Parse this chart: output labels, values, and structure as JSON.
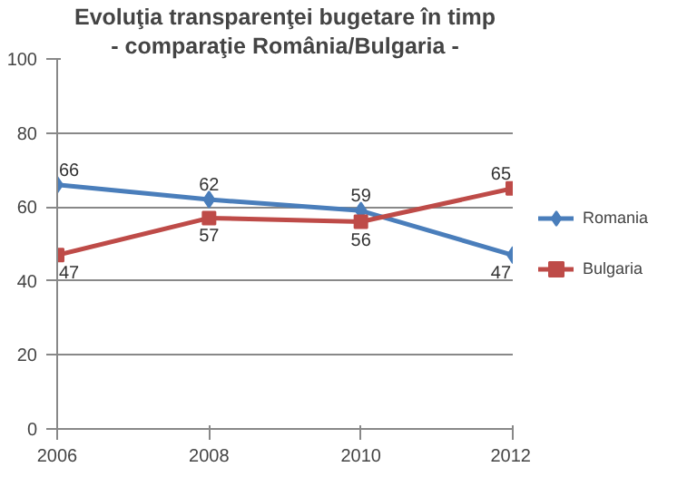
{
  "chart_data": {
    "type": "line",
    "title": "Evoluţia transparenţei bugetare în timp",
    "subtitle": "- comparaţie România/Bulgaria -",
    "x": [
      2006,
      2008,
      2010,
      2012
    ],
    "series": [
      {
        "name": "Romania",
        "color": "#4a7ebb",
        "values": [
          66,
          62,
          59,
          47
        ],
        "marker": "diamond"
      },
      {
        "name": "Bulgaria",
        "color": "#be4b48",
        "values": [
          47,
          57,
          56,
          65
        ],
        "marker": "square"
      }
    ],
    "xlim": [
      2006,
      2012
    ],
    "xticks": [
      2006,
      2008,
      2010,
      2012
    ],
    "ylim": [
      0,
      100
    ],
    "yticks": [
      0,
      20,
      40,
      60,
      80,
      100
    ],
    "grid": "y",
    "legend": "right",
    "data_labels": true,
    "line_style": "solid"
  }
}
